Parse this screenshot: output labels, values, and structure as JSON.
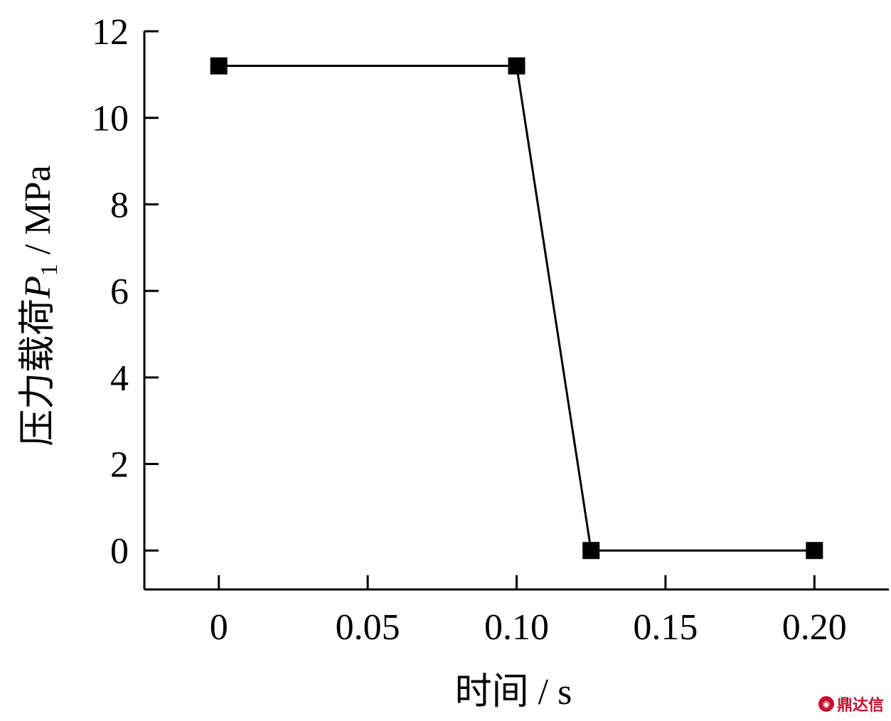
{
  "chart_data": {
    "type": "line",
    "x": [
      0,
      0.1,
      0.125,
      0.2
    ],
    "series": [
      {
        "values": [
          11.2,
          11.2,
          0,
          0
        ]
      }
    ],
    "xlabel": "时间 / s",
    "ylabel_prefix": "压力载荷",
    "ylabel_var": "P",
    "ylabel_sub": "1",
    "ylabel_unit": " / MPa",
    "xlim": [
      -0.025,
      0.225
    ],
    "ylim": [
      -0.9,
      12
    ],
    "xticks": [
      0,
      0.05,
      0.1,
      0.15,
      0.2
    ],
    "xtick_labels": [
      "0",
      "0.05",
      "0.10",
      "0.15",
      "0.20"
    ],
    "yticks": [
      0,
      2,
      4,
      6,
      8,
      10,
      12
    ],
    "ytick_labels": [
      "0",
      "2",
      "4",
      "6",
      "8",
      "10",
      "12"
    ],
    "marker": "square",
    "line_color": "#000000",
    "grid": false
  },
  "watermark": {
    "text": "鼎达信",
    "color": "#c8102e"
  }
}
